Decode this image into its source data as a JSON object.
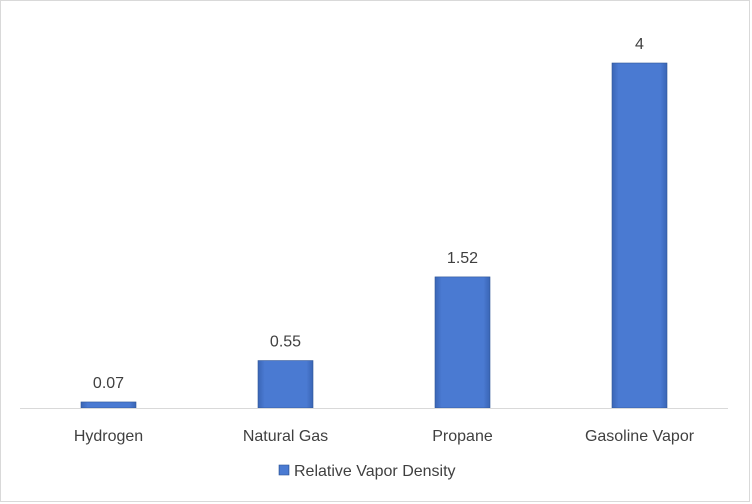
{
  "chart_data": {
    "type": "bar",
    "categories": [
      "Hydrogen",
      "Natural Gas",
      "Propane",
      "Gasoline Vapor"
    ],
    "series": [
      {
        "name": "Relative Vapor Density",
        "values": [
          0.07,
          0.55,
          1.52,
          4
        ],
        "color": "#4472C4"
      }
    ],
    "data_labels": [
      "0.07",
      "0.55",
      "1.52",
      "4"
    ],
    "ylim": [
      0,
      4
    ],
    "grid": false,
    "legend_position": "bottom"
  }
}
